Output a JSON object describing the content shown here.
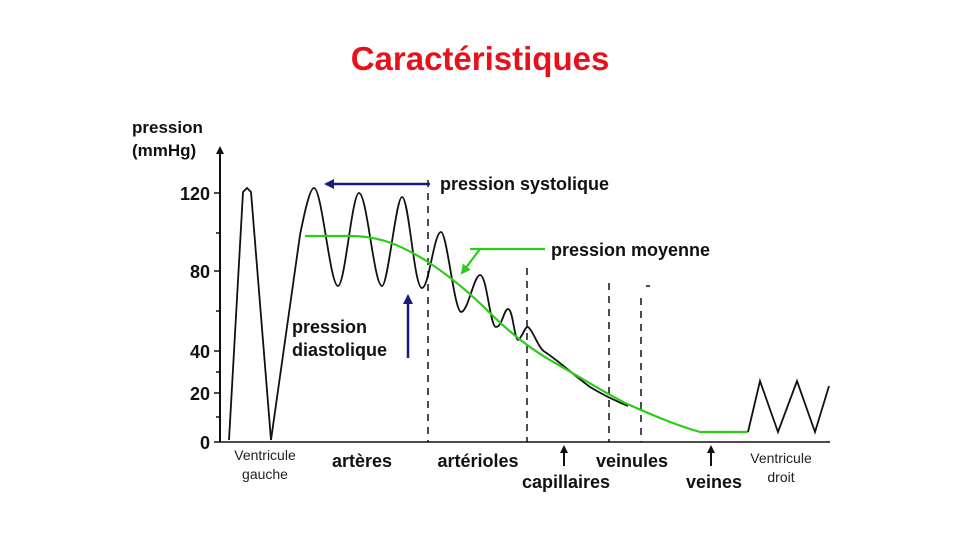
{
  "title": "Caractéristiques",
  "y_axis": {
    "label_line1": "pression",
    "label_line2": "(mmHg)",
    "ticks": [
      "120",
      "80",
      "40",
      "20",
      "0"
    ]
  },
  "annotations": {
    "systolic": "pression systolique",
    "mean": "pression moyenne",
    "diastolic_line1": "pression",
    "diastolic_line2": "diastolique"
  },
  "segments": {
    "left_ventricle_line1": "Ventricule",
    "left_ventricle_line2": "gauche",
    "arteries": "artères",
    "arterioles": "artérioles",
    "capillaries": "capillaires",
    "venules": "veinules",
    "veins": "veines",
    "right_ventricle_line1": "Ventricule",
    "right_ventricle_line2": "droit"
  },
  "colors": {
    "title": "#e8101a",
    "mean_curve": "#2ecc1a",
    "arrow": "#1a1a7a",
    "curve": "#111111"
  }
}
